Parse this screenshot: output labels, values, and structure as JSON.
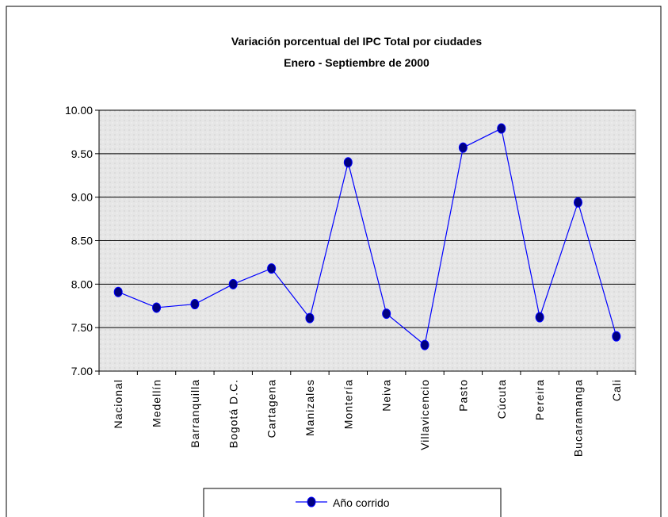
{
  "chart_data": {
    "type": "line",
    "title": "Variación porcentual del IPC Total por ciudades",
    "subtitle": "Enero - Septiembre  de 2000",
    "categories": [
      "Nacional",
      "Medellín",
      "Barranquilla",
      "Bogotá D.C.",
      "Cartagena",
      "Manizales",
      "Montería",
      "Neiva",
      "Villavicencio",
      "Pasto",
      "Cúcuta",
      "Pereira",
      "Bucaramanga",
      "Cali"
    ],
    "series": [
      {
        "name": "Año corrido",
        "color": "#0000ff",
        "marker_color": "#000080",
        "values": [
          7.91,
          7.73,
          7.77,
          8.0,
          8.18,
          7.61,
          9.4,
          7.66,
          7.3,
          9.57,
          9.79,
          7.62,
          8.94,
          7.4
        ]
      }
    ],
    "ylim": [
      7,
      10
    ],
    "yticks": [
      {
        "value": 7,
        "label": "7.00"
      },
      {
        "value": 7.5,
        "label": "7.50"
      },
      {
        "value": 8,
        "label": "8.00"
      },
      {
        "value": 8.5,
        "label": "8.50"
      },
      {
        "value": 9,
        "label": "9.00"
      },
      {
        "value": 9.5,
        "label": "9.50"
      },
      {
        "value": 10,
        "label": "10.00"
      }
    ],
    "grid": true
  }
}
